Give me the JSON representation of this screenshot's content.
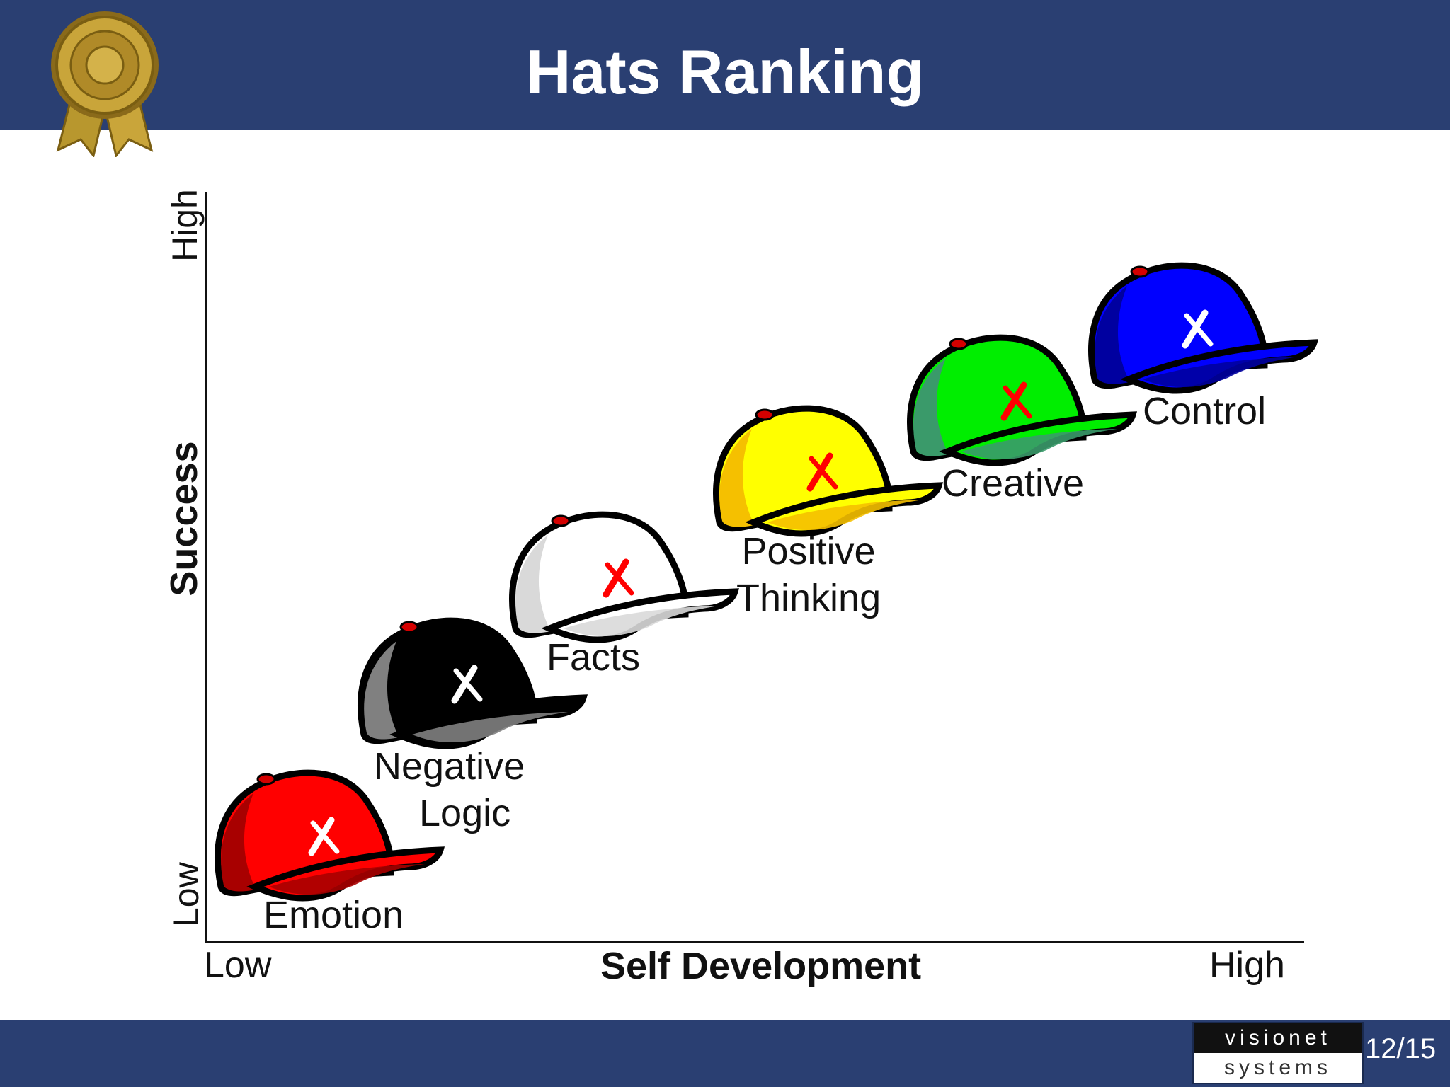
{
  "slide": {
    "title": "Hats Ranking",
    "page_number": "12/15",
    "logo": {
      "line1": "visionet",
      "line2": "systems"
    }
  },
  "axes": {
    "y_title": "Success",
    "y_low": "Low",
    "y_high": "High",
    "x_title": "Self Development",
    "x_low": "Low",
    "x_high": "High"
  },
  "hats": [
    {
      "name": "emotion",
      "label": "Emotion",
      "color": "#ff0000",
      "dark": "#a80000",
      "logo": "#ffffff"
    },
    {
      "name": "negative-logic",
      "label": "Negative\nLogic",
      "color": "#000000",
      "dark": "#808080",
      "logo": "#ffffff"
    },
    {
      "name": "facts",
      "label": "Facts",
      "color": "#ffffff",
      "dark": "#d9d9d9",
      "logo": "#ff0000"
    },
    {
      "name": "positive-thinking",
      "label": "Positive\nThinking",
      "color": "#ffff00",
      "dark": "#f5c000",
      "logo": "#ff0000"
    },
    {
      "name": "creative",
      "label": "Creative",
      "color": "#00ee00",
      "dark": "#3a9a6a",
      "logo": "#ff0000"
    },
    {
      "name": "control",
      "label": "Control",
      "color": "#0000ff",
      "dark": "#0000a0",
      "logo": "#ffffff"
    }
  ]
}
